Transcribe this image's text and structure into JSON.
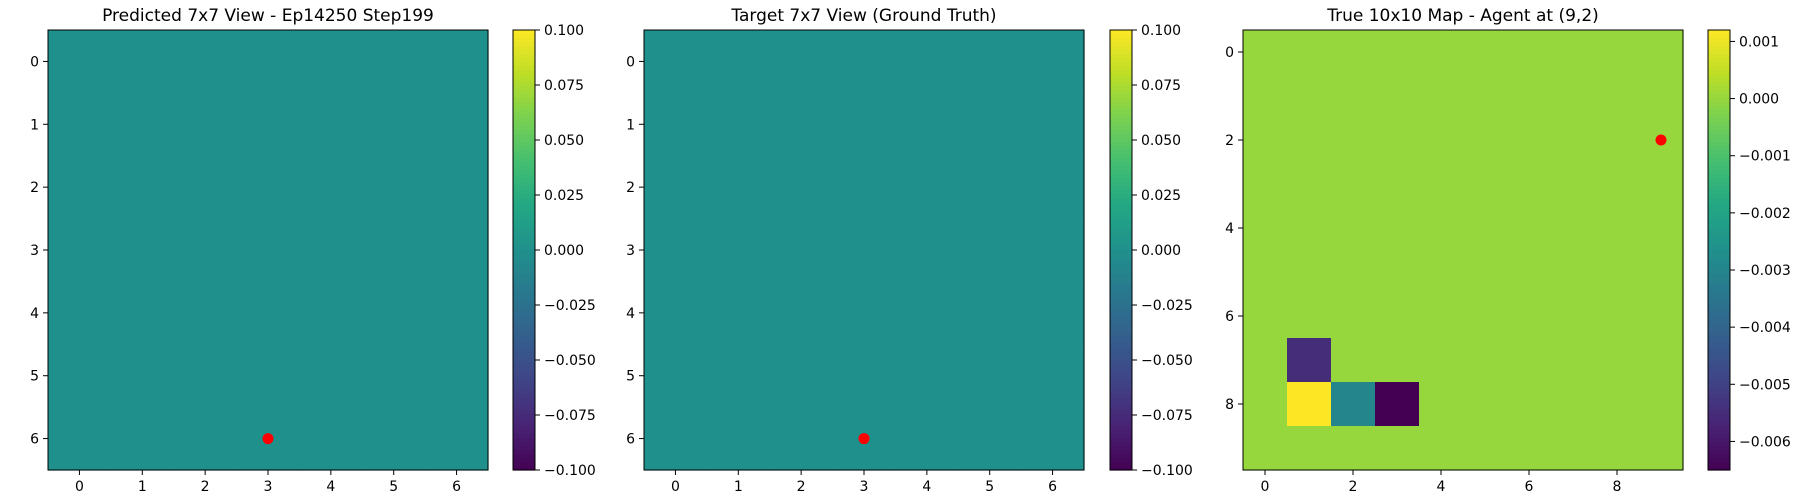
{
  "chart_data": [
    {
      "type": "heatmap",
      "title": "Predicted 7x7 View - Ep14250 Step199",
      "grid_size": 7,
      "xticks": [
        0,
        1,
        2,
        3,
        4,
        5,
        6
      ],
      "yticks": [
        0,
        1,
        2,
        3,
        4,
        5,
        6
      ],
      "values": [
        [
          0,
          0,
          0,
          0,
          0,
          0,
          0
        ],
        [
          0,
          0,
          0,
          0,
          0,
          0,
          0
        ],
        [
          0,
          0,
          0,
          0,
          0,
          0,
          0
        ],
        [
          0,
          0,
          0,
          0,
          0,
          0,
          0
        ],
        [
          0,
          0,
          0,
          0,
          0,
          0,
          0
        ],
        [
          0,
          0,
          0,
          0,
          0,
          0,
          0
        ],
        [
          0,
          0,
          0,
          0,
          0,
          0,
          0
        ]
      ],
      "colorbar": {
        "range": [
          -0.1,
          0.1
        ],
        "ticks": [
          0.1,
          0.075,
          0.05,
          0.025,
          0.0,
          -0.025,
          -0.05,
          -0.075,
          -0.1
        ],
        "tick_labels": [
          "0.100",
          "0.075",
          "0.050",
          "0.025",
          "0.000",
          "−0.025",
          "−0.050",
          "−0.075",
          "−0.100"
        ]
      },
      "agent_marker": {
        "x": 3,
        "y": 6,
        "color": "#ff0000"
      }
    },
    {
      "type": "heatmap",
      "title": "Target 7x7 View (Ground Truth)",
      "grid_size": 7,
      "xticks": [
        0,
        1,
        2,
        3,
        4,
        5,
        6
      ],
      "yticks": [
        0,
        1,
        2,
        3,
        4,
        5,
        6
      ],
      "values": [
        [
          0,
          0,
          0,
          0,
          0,
          0,
          0
        ],
        [
          0,
          0,
          0,
          0,
          0,
          0,
          0
        ],
        [
          0,
          0,
          0,
          0,
          0,
          0,
          0
        ],
        [
          0,
          0,
          0,
          0,
          0,
          0,
          0
        ],
        [
          0,
          0,
          0,
          0,
          0,
          0,
          0
        ],
        [
          0,
          0,
          0,
          0,
          0,
          0,
          0
        ],
        [
          0,
          0,
          0,
          0,
          0,
          0,
          0
        ]
      ],
      "colorbar": {
        "range": [
          -0.1,
          0.1
        ],
        "ticks": [
          0.1,
          0.075,
          0.05,
          0.025,
          0.0,
          -0.025,
          -0.05,
          -0.075,
          -0.1
        ],
        "tick_labels": [
          "0.100",
          "0.075",
          "0.050",
          "0.025",
          "0.000",
          "−0.025",
          "−0.050",
          "−0.075",
          "−0.100"
        ]
      },
      "agent_marker": {
        "x": 3,
        "y": 6,
        "color": "#ff0000"
      }
    },
    {
      "type": "heatmap",
      "title": "True 10x10 Map - Agent at (9,2)",
      "grid_size": 10,
      "xticks": [
        0,
        2,
        4,
        6,
        8
      ],
      "yticks": [
        0,
        2,
        4,
        6,
        8
      ],
      "values": [
        [
          0,
          0,
          0,
          0,
          0,
          0,
          0,
          0,
          0,
          0
        ],
        [
          0,
          0,
          0,
          0,
          0,
          0,
          0,
          0,
          0,
          0
        ],
        [
          0,
          0,
          0,
          0,
          0,
          0,
          0,
          0,
          0,
          0
        ],
        [
          0,
          0,
          0,
          0,
          0,
          0,
          0,
          0,
          0,
          0
        ],
        [
          0,
          0,
          0,
          0,
          0,
          0,
          0,
          0,
          0,
          0
        ],
        [
          0,
          0,
          0,
          0,
          0,
          0,
          0,
          0,
          0,
          0
        ],
        [
          0,
          0,
          0,
          0,
          0,
          0,
          0,
          0,
          0,
          0
        ],
        [
          0,
          -0.0055,
          0,
          0,
          0,
          0,
          0,
          0,
          0,
          0
        ],
        [
          0,
          0.0012,
          -0.003,
          -0.0065,
          0,
          0,
          0,
          0,
          0,
          0
        ],
        [
          0,
          0,
          0,
          0,
          0,
          0,
          0,
          0,
          0,
          0
        ]
      ],
      "colorbar": {
        "range": [
          -0.0065,
          0.0012
        ],
        "ticks": [
          0.001,
          0.0,
          -0.001,
          -0.002,
          -0.003,
          -0.004,
          -0.005,
          -0.006
        ],
        "tick_labels": [
          "0.001",
          "0.000",
          "−0.001",
          "−0.002",
          "−0.003",
          "−0.004",
          "−0.005",
          "−0.006"
        ]
      },
      "agent_marker": {
        "x": 9,
        "y": 2,
        "color": "#ff0000"
      }
    }
  ]
}
